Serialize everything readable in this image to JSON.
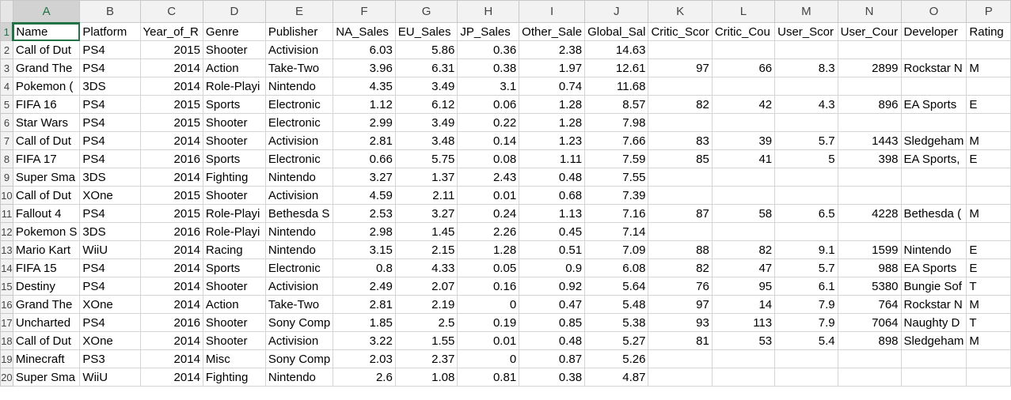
{
  "columns": [
    "A",
    "B",
    "C",
    "D",
    "E",
    "F",
    "G",
    "H",
    "I",
    "J",
    "K",
    "L",
    "M",
    "N",
    "O",
    "P"
  ],
  "rows": [
    {
      "n": "1",
      "cells": [
        "Name",
        "Platform",
        "Year_of_R",
        "Genre",
        "Publisher",
        "NA_Sales",
        "EU_Sales",
        "JP_Sales",
        "Other_Sale",
        "Global_Sal",
        "Critic_Scor",
        "Critic_Cou",
        "User_Scor",
        "User_Cour",
        "Developer",
        "Rating"
      ]
    },
    {
      "n": "2",
      "cells": [
        "Call of Dut",
        "PS4",
        "2015",
        "Shooter",
        "Activision",
        "6.03",
        "5.86",
        "0.36",
        "2.38",
        "14.63",
        "",
        "",
        "",
        "",
        "",
        ""
      ]
    },
    {
      "n": "3",
      "cells": [
        "Grand The",
        "PS4",
        "2014",
        "Action",
        "Take-Two",
        "3.96",
        "6.31",
        "0.38",
        "1.97",
        "12.61",
        "97",
        "66",
        "8.3",
        "2899",
        "Rockstar N",
        "M"
      ]
    },
    {
      "n": "4",
      "cells": [
        "Pokemon (",
        "3DS",
        "2014",
        "Role-Playi",
        "Nintendo",
        "4.35",
        "3.49",
        "3.1",
        "0.74",
        "11.68",
        "",
        "",
        "",
        "",
        "",
        ""
      ]
    },
    {
      "n": "5",
      "cells": [
        "FIFA 16",
        "PS4",
        "2015",
        "Sports",
        "Electronic",
        "1.12",
        "6.12",
        "0.06",
        "1.28",
        "8.57",
        "82",
        "42",
        "4.3",
        "896",
        "EA Sports",
        "E"
      ]
    },
    {
      "n": "6",
      "cells": [
        "Star Wars",
        "PS4",
        "2015",
        "Shooter",
        "Electronic",
        "2.99",
        "3.49",
        "0.22",
        "1.28",
        "7.98",
        "",
        "",
        "",
        "",
        "",
        ""
      ]
    },
    {
      "n": "7",
      "cells": [
        "Call of Dut",
        "PS4",
        "2014",
        "Shooter",
        "Activision",
        "2.81",
        "3.48",
        "0.14",
        "1.23",
        "7.66",
        "83",
        "39",
        "5.7",
        "1443",
        "Sledgeham",
        "M"
      ]
    },
    {
      "n": "8",
      "cells": [
        "FIFA 17",
        "PS4",
        "2016",
        "Sports",
        "Electronic",
        "0.66",
        "5.75",
        "0.08",
        "1.11",
        "7.59",
        "85",
        "41",
        "5",
        "398",
        "EA Sports,",
        "E"
      ]
    },
    {
      "n": "9",
      "cells": [
        "Super Sma",
        "3DS",
        "2014",
        "Fighting",
        "Nintendo",
        "3.27",
        "1.37",
        "2.43",
        "0.48",
        "7.55",
        "",
        "",
        "",
        "",
        "",
        ""
      ]
    },
    {
      "n": "10",
      "cells": [
        "Call of Dut",
        "XOne",
        "2015",
        "Shooter",
        "Activision",
        "4.59",
        "2.11",
        "0.01",
        "0.68",
        "7.39",
        "",
        "",
        "",
        "",
        "",
        ""
      ]
    },
    {
      "n": "11",
      "cells": [
        "Fallout 4",
        "PS4",
        "2015",
        "Role-Playi",
        "Bethesda S",
        "2.53",
        "3.27",
        "0.24",
        "1.13",
        "7.16",
        "87",
        "58",
        "6.5",
        "4228",
        "Bethesda (",
        "M"
      ]
    },
    {
      "n": "12",
      "cells": [
        "Pokemon S",
        "3DS",
        "2016",
        "Role-Playi",
        "Nintendo",
        "2.98",
        "1.45",
        "2.26",
        "0.45",
        "7.14",
        "",
        "",
        "",
        "",
        "",
        ""
      ]
    },
    {
      "n": "13",
      "cells": [
        "Mario Kart",
        "WiiU",
        "2014",
        "Racing",
        "Nintendo",
        "3.15",
        "2.15",
        "1.28",
        "0.51",
        "7.09",
        "88",
        "82",
        "9.1",
        "1599",
        "Nintendo",
        "E"
      ]
    },
    {
      "n": "14",
      "cells": [
        "FIFA 15",
        "PS4",
        "2014",
        "Sports",
        "Electronic",
        "0.8",
        "4.33",
        "0.05",
        "0.9",
        "6.08",
        "82",
        "47",
        "5.7",
        "988",
        "EA Sports",
        "E"
      ]
    },
    {
      "n": "15",
      "cells": [
        "Destiny",
        "PS4",
        "2014",
        "Shooter",
        "Activision",
        "2.49",
        "2.07",
        "0.16",
        "0.92",
        "5.64",
        "76",
        "95",
        "6.1",
        "5380",
        "Bungie Sof",
        "T"
      ]
    },
    {
      "n": "16",
      "cells": [
        "Grand The",
        "XOne",
        "2014",
        "Action",
        "Take-Two",
        "2.81",
        "2.19",
        "0",
        "0.47",
        "5.48",
        "97",
        "14",
        "7.9",
        "764",
        "Rockstar N",
        "M"
      ]
    },
    {
      "n": "17",
      "cells": [
        "Uncharted",
        "PS4",
        "2016",
        "Shooter",
        "Sony Comp",
        "1.85",
        "2.5",
        "0.19",
        "0.85",
        "5.38",
        "93",
        "113",
        "7.9",
        "7064",
        "Naughty D",
        "T"
      ]
    },
    {
      "n": "18",
      "cells": [
        "Call of Dut",
        "XOne",
        "2014",
        "Shooter",
        "Activision",
        "3.22",
        "1.55",
        "0.01",
        "0.48",
        "5.27",
        "81",
        "53",
        "5.4",
        "898",
        "Sledgeham",
        "M"
      ]
    },
    {
      "n": "19",
      "cells": [
        "Minecraft",
        "PS3",
        "2014",
        "Misc",
        "Sony Comp",
        "2.03",
        "2.37",
        "0",
        "0.87",
        "5.26",
        "",
        "",
        "",
        "",
        "",
        ""
      ]
    },
    {
      "n": "20",
      "cells": [
        "Super Sma",
        "WiiU",
        "2014",
        "Fighting",
        "Nintendo",
        "2.6",
        "1.08",
        "0.81",
        "0.38",
        "4.87",
        "",
        "",
        "",
        "",
        "",
        ""
      ]
    }
  ],
  "selection": {
    "column": "A",
    "row": "1"
  },
  "colors": {
    "accent": "#217346",
    "header_bg": "#f2f2f2",
    "gridline": "#d4d4d4"
  }
}
